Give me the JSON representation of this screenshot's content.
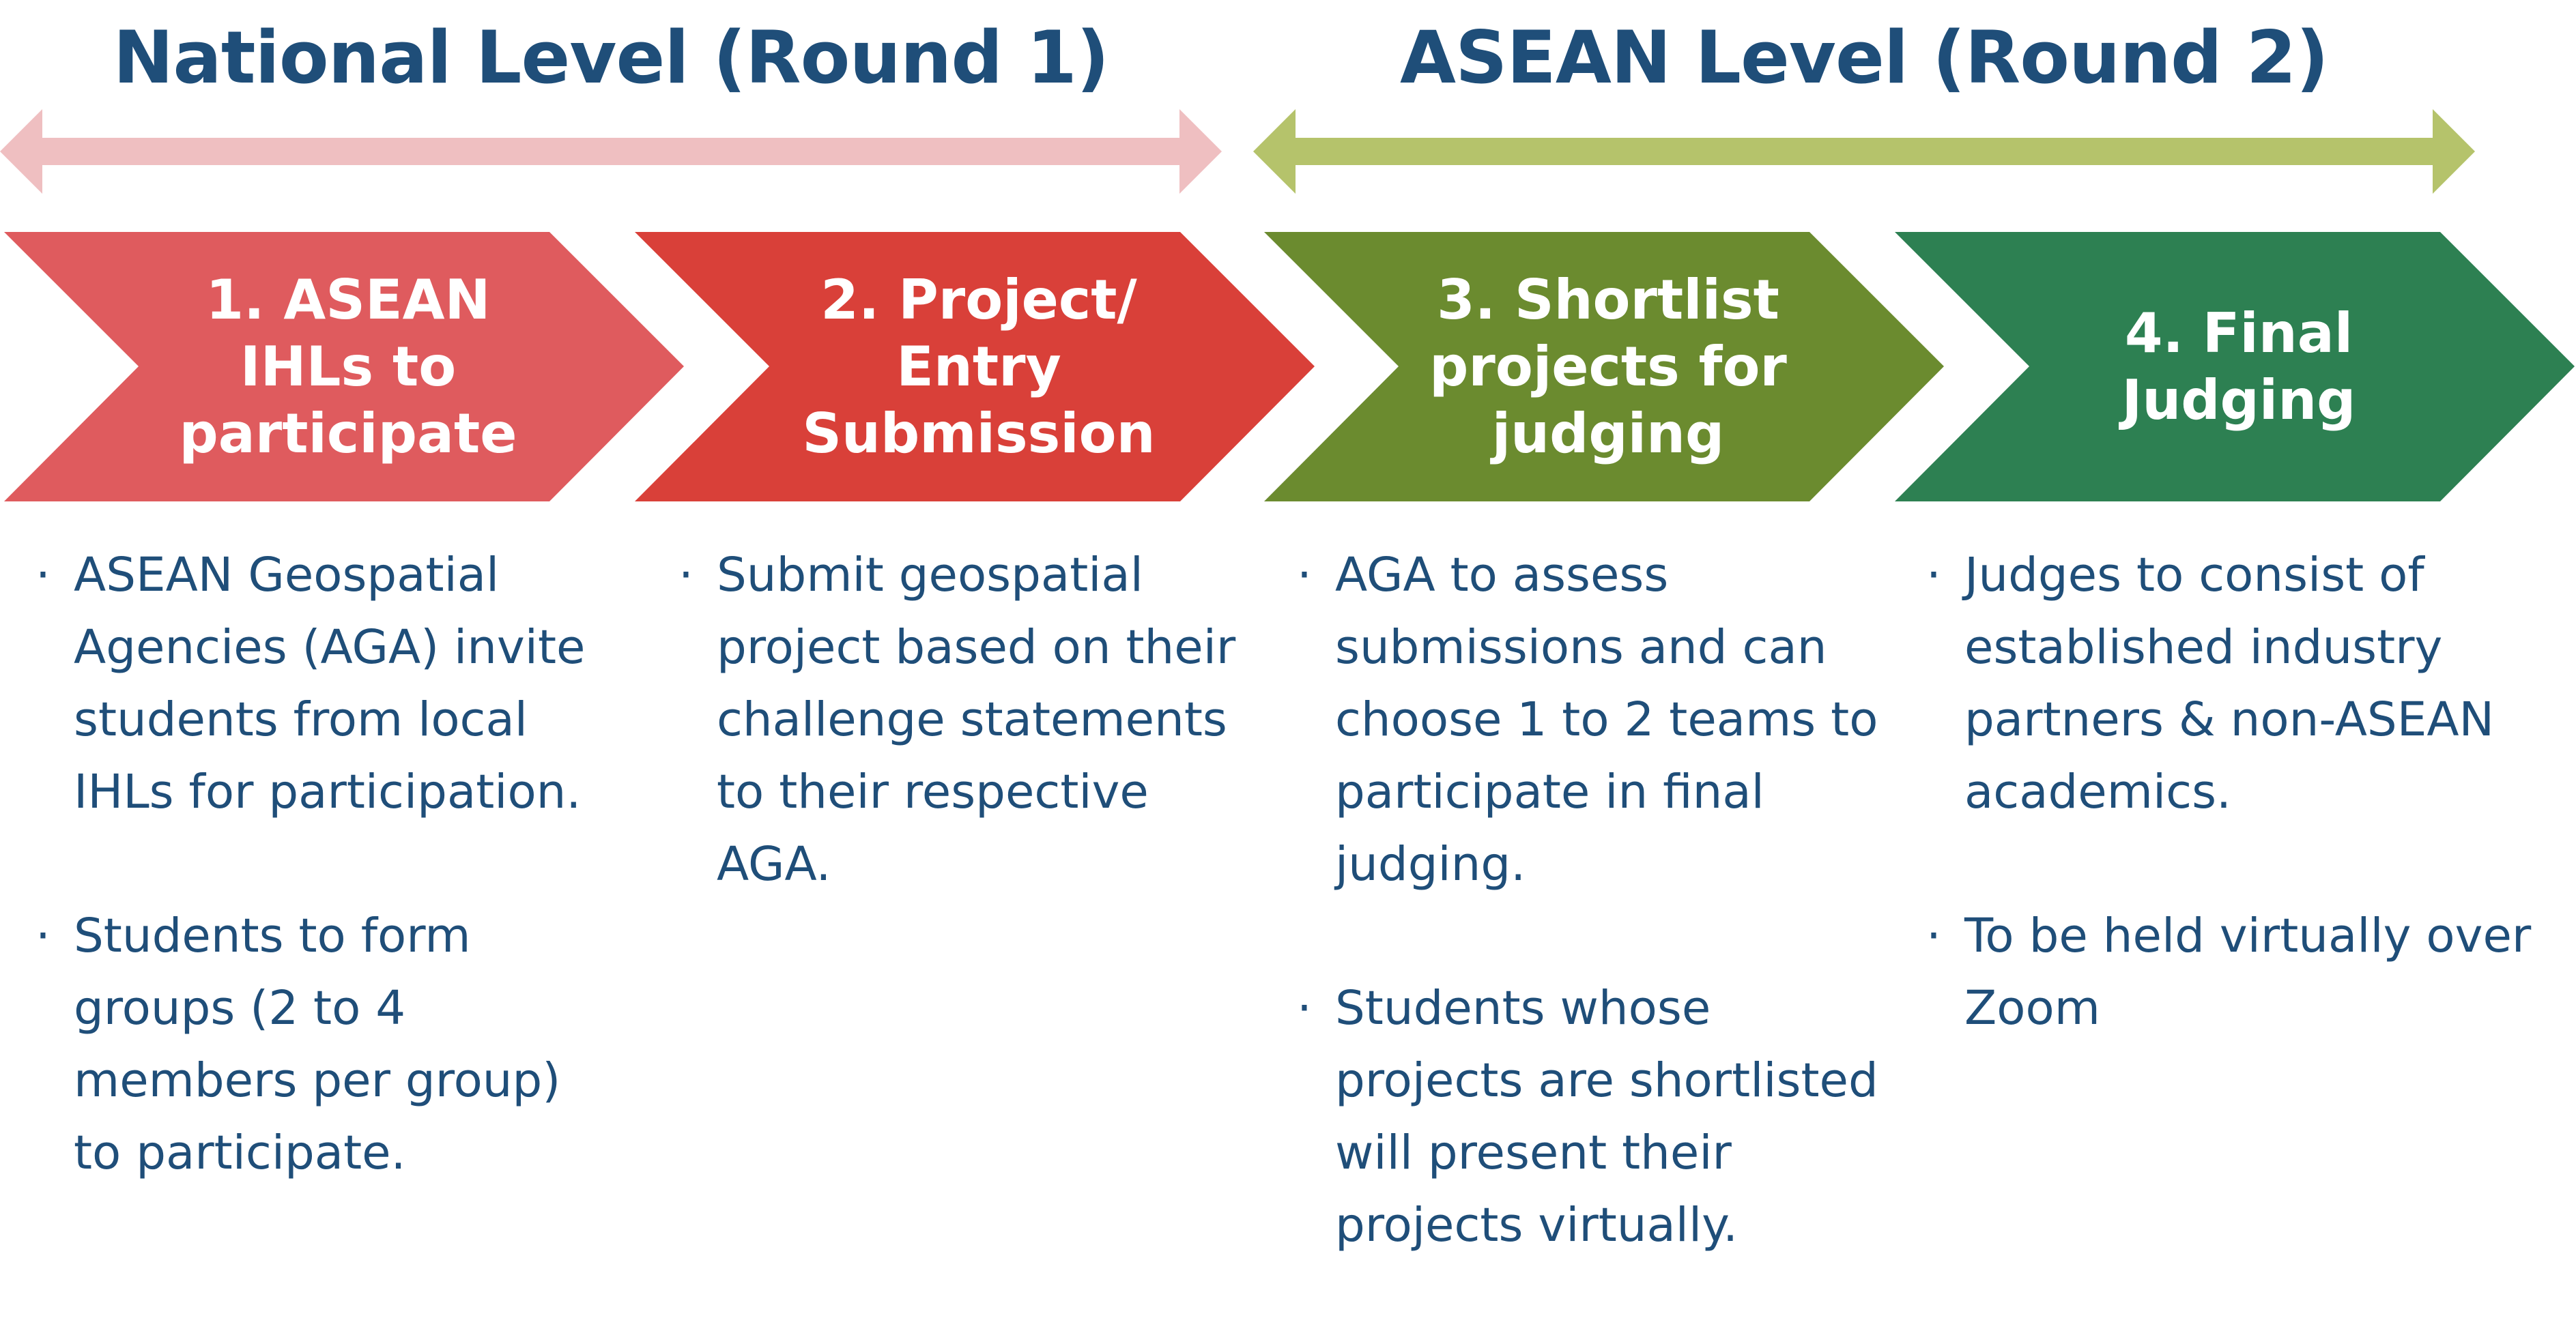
{
  "levels": {
    "national": {
      "title": "National Level (Round 1)",
      "arrow_color": "#efbfc1"
    },
    "asean": {
      "title": "ASEAN Level (Round 2)",
      "arrow_color": "#b5c36b"
    }
  },
  "steps": [
    {
      "title": "1. ASEAN IHLs to participate",
      "lines": [
        "1. ASEAN",
        "IHLs to",
        "participate"
      ],
      "color": "#df5b5e",
      "bullets": [
        "ASEAN Geospatial Agencies (AGA) invite students from local IHLs for participation.",
        "Students to form groups (2 to 4 members per group) to participate."
      ]
    },
    {
      "title": "2. Project/ Entry Submission",
      "lines": [
        "2. Project/",
        "Entry",
        "Submission"
      ],
      "color": "#d94039",
      "bullets": [
        "Submit geospatial project based on their challenge statements to their respective AGA."
      ]
    },
    {
      "title": "3. Shortlist projects for judging",
      "lines": [
        "3. Shortlist",
        "projects for",
        "judging"
      ],
      "color": "#6b8b2f",
      "bullets": [
        "AGA to assess submissions and can choose 1 to 2 teams to participate in final judging.",
        "Students whose projects are shortlisted will present their projects virtually."
      ]
    },
    {
      "title": "4. Final Judging",
      "lines": [
        "4. Final",
        "Judging"
      ],
      "color": "#2d8052",
      "bullets": [
        "Judges to consist of established industry partners & non-ASEAN academics.",
        "To be held virtually over Zoom"
      ]
    }
  ]
}
